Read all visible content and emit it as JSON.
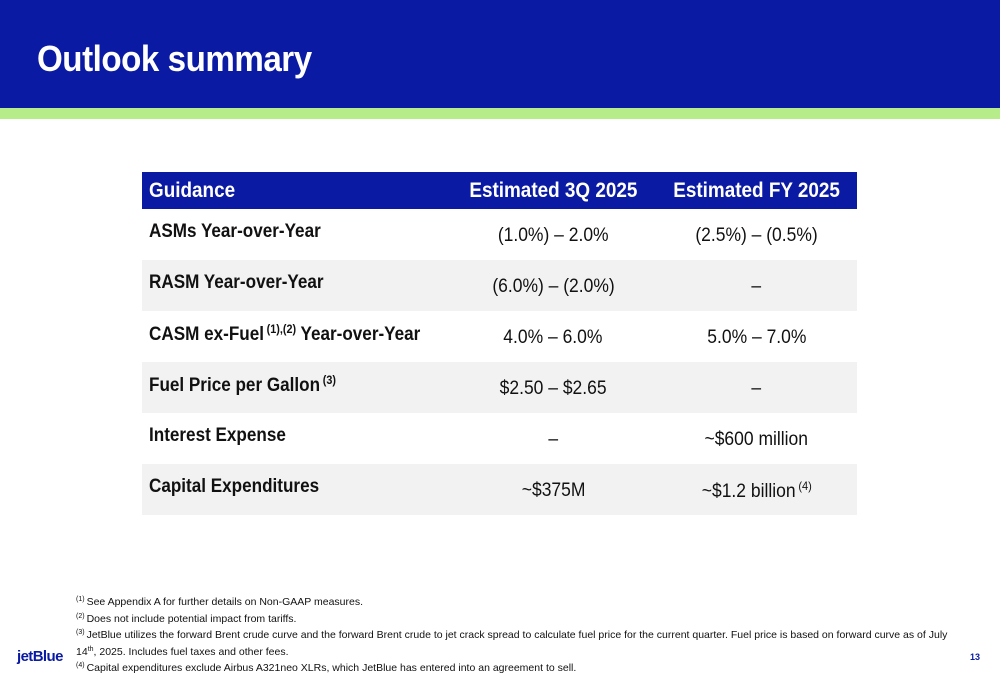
{
  "slide": {
    "title": "Outlook summary",
    "page_number": "13",
    "logo_text": "jetBlue"
  },
  "colors": {
    "header_blue": "#0a1aa3",
    "accent_green": "#b7ec8a",
    "row_shade": "#f2f2f2"
  },
  "table": {
    "headers": [
      "Guidance",
      "Estimated 3Q 2025",
      "Estimated FY 2025"
    ],
    "rows": [
      {
        "label": "ASMs Year-over-Year",
        "label_sup": "",
        "label_suffix": "",
        "q3": "(1.0%) – 2.0%",
        "fy": "(2.5%) – (0.5%)",
        "fy_sup": ""
      },
      {
        "label": "RASM Year-over-Year",
        "label_sup": "",
        "label_suffix": "",
        "q3": "(6.0%) – (2.0%)",
        "fy": "–",
        "fy_sup": ""
      },
      {
        "label": "CASM ex-Fuel",
        "label_sup": "(1),(2)",
        "label_suffix": "Year-over-Year",
        "q3": "4.0% – 6.0%",
        "fy": "5.0% – 7.0%",
        "fy_sup": ""
      },
      {
        "label": "Fuel Price per Gallon",
        "label_sup": "(3)",
        "label_suffix": "",
        "q3": "$2.50 – $2.65",
        "fy": "–",
        "fy_sup": ""
      },
      {
        "label": "Interest Expense",
        "label_sup": "",
        "label_suffix": "",
        "q3": "–",
        "fy": "~$600 million",
        "fy_sup": ""
      },
      {
        "label": "Capital Expenditures",
        "label_sup": "",
        "label_suffix": "",
        "q3": "~$375M",
        "fy": "~$1.2 billion",
        "fy_sup": "(4)"
      }
    ]
  },
  "footnotes": [
    {
      "num": "(1)",
      "text": "See Appendix A for further details on Non-GAAP measures."
    },
    {
      "num": "(2)",
      "text": "Does not include potential impact from tariffs."
    },
    {
      "num": "(3)",
      "text_before": "JetBlue utilizes the forward Brent crude curve and the forward Brent crude to jet crack spread to calculate fuel price for the current quarter. Fuel price is based on forward curve as of July 14",
      "text_sup": "th",
      "text_after": ", 2025. Includes fuel taxes and other fees."
    },
    {
      "num": "(4)",
      "text": "Capital expenditures exclude Airbus A321neo XLRs, which JetBlue has entered into an agreement to sell."
    }
  ]
}
